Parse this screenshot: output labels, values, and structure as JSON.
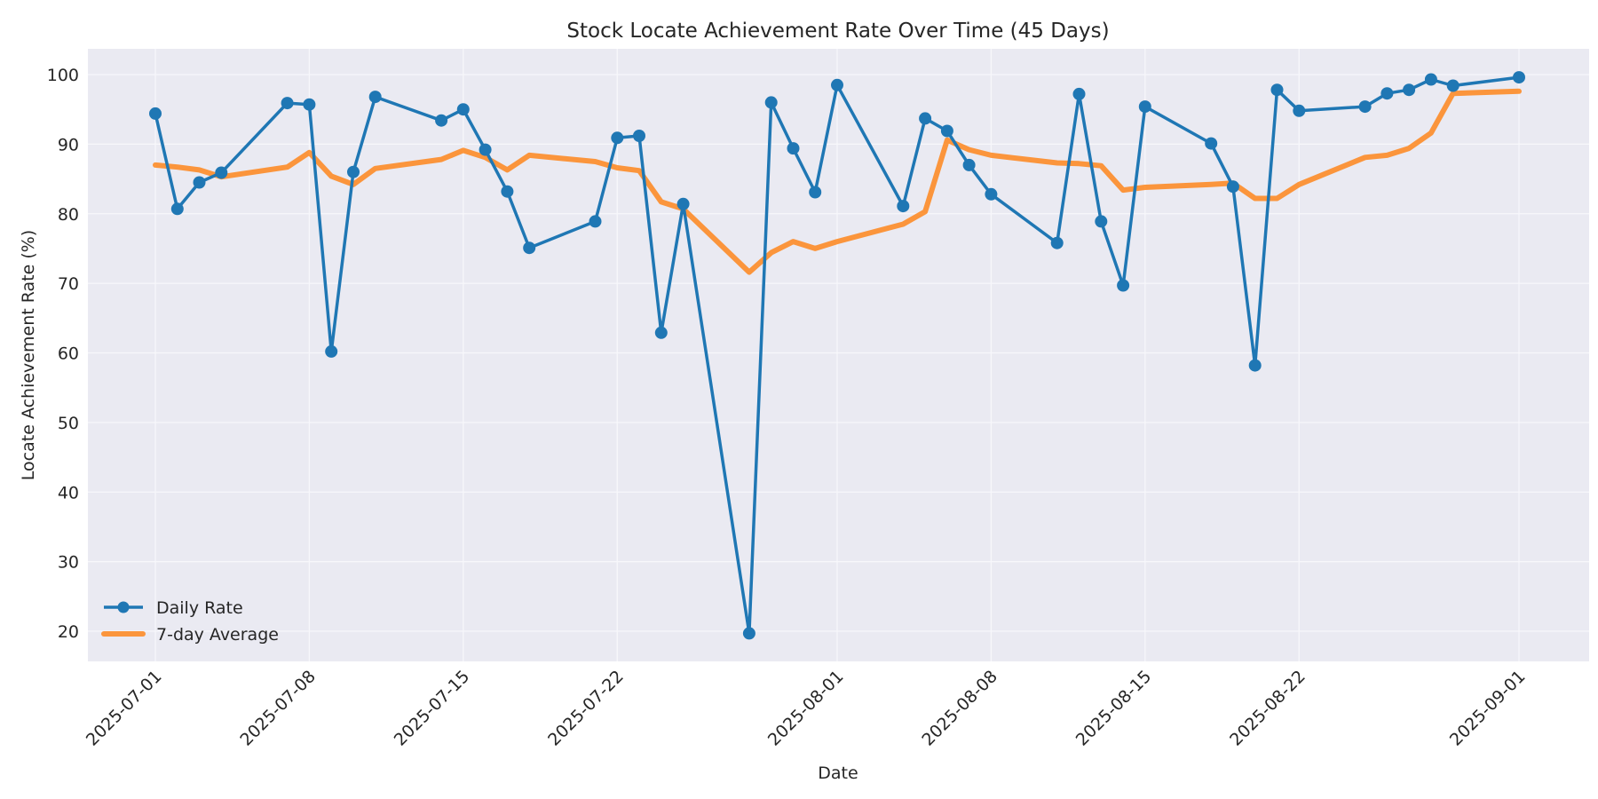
{
  "chart_data": {
    "type": "line",
    "title": "Stock Locate Achievement Rate Over Time (45 Days)",
    "xlabel": "Date",
    "ylabel": "Locate Achievement Rate (%)",
    "ylim": [
      16,
      104
    ],
    "yticks": [
      20,
      30,
      40,
      50,
      60,
      70,
      80,
      90,
      100
    ],
    "xticks": [
      "2025-07-01",
      "2025-07-08",
      "2025-07-15",
      "2025-07-22",
      "2025-08-01",
      "2025-08-08",
      "2025-08-15",
      "2025-08-22",
      "2025-09-01"
    ],
    "grid": true,
    "legend_position": "lower left",
    "x": [
      "2025-07-01",
      "2025-07-02",
      "2025-07-03",
      "2025-07-04",
      "2025-07-07",
      "2025-07-08",
      "2025-07-09",
      "2025-07-10",
      "2025-07-11",
      "2025-07-14",
      "2025-07-15",
      "2025-07-16",
      "2025-07-17",
      "2025-07-18",
      "2025-07-21",
      "2025-07-22",
      "2025-07-23",
      "2025-07-24",
      "2025-07-25",
      "2025-07-28",
      "2025-07-29",
      "2025-07-30",
      "2025-07-31",
      "2025-08-01",
      "2025-08-04",
      "2025-08-05",
      "2025-08-06",
      "2025-08-07",
      "2025-08-08",
      "2025-08-11",
      "2025-08-12",
      "2025-08-13",
      "2025-08-14",
      "2025-08-15",
      "2025-08-18",
      "2025-08-19",
      "2025-08-20",
      "2025-08-21",
      "2025-08-22",
      "2025-08-25",
      "2025-08-26",
      "2025-08-27",
      "2025-08-28",
      "2025-08-29",
      "2025-09-01"
    ],
    "series": [
      {
        "name": "Daily Rate",
        "color": "#1f77b4",
        "marker": "circle",
        "values": [
          94.4,
          80.7,
          84.5,
          85.9,
          95.9,
          95.7,
          60.2,
          86.0,
          96.8,
          93.4,
          95.0,
          89.2,
          83.2,
          75.1,
          78.9,
          90.9,
          91.2,
          62.9,
          81.4,
          19.7,
          96.0,
          89.4,
          83.1,
          98.5,
          81.1,
          93.7,
          91.9,
          87.0,
          82.8,
          75.8,
          97.2,
          78.9,
          69.7,
          95.4,
          90.1,
          83.9,
          58.2,
          97.8,
          94.8,
          95.4,
          97.3,
          97.8,
          99.3,
          98.4,
          99.6
        ]
      },
      {
        "name": "7-day Average",
        "color": "#ff7f0e",
        "marker": "none",
        "values": [
          87.0,
          86.7,
          86.3,
          85.3,
          86.7,
          88.8,
          85.4,
          84.2,
          86.5,
          87.8,
          89.1,
          88.1,
          86.3,
          88.4,
          87.5,
          86.6,
          86.2,
          81.7,
          80.7,
          71.6,
          74.4,
          76.0,
          75.0,
          76.0,
          78.5,
          80.3,
          90.6,
          89.2,
          88.4,
          87.3,
          87.2,
          86.9,
          83.4,
          83.8,
          84.2,
          84.4,
          82.2,
          82.2,
          84.2,
          88.1,
          88.4,
          89.4,
          91.6,
          97.3,
          97.6
        ]
      }
    ]
  },
  "legend": {
    "items": [
      {
        "label": "Daily Rate"
      },
      {
        "label": "7-day Average"
      }
    ]
  },
  "colors": {
    "plot_background": "#eaeaf2",
    "grid": "#f5f5f9",
    "daily": "#1f77b4",
    "average": "#ff7f0e"
  }
}
